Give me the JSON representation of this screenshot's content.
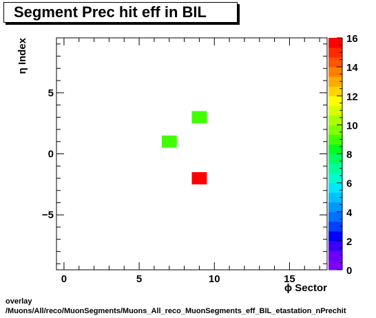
{
  "chart_data": {
    "type": "heatmap",
    "title": "Segment Prec hit eff in BIL",
    "xlabel": "ϕ Sector",
    "ylabel": "η Index",
    "xlim": [
      -0.5,
      17.5
    ],
    "ylim": [
      -9.5,
      9.5
    ],
    "x_ticks": [
      0,
      5,
      10,
      15
    ],
    "y_ticks": [
      -5,
      0,
      5
    ],
    "zlim": [
      0,
      16
    ],
    "z_ticks": [
      0,
      2,
      4,
      6,
      8,
      10,
      12,
      14,
      16
    ],
    "cells": [
      {
        "x": 7,
        "y": 1,
        "value": 9
      },
      {
        "x": 9,
        "y": 3,
        "value": 9
      },
      {
        "x": 9,
        "y": -2,
        "value": 16
      }
    ],
    "palette": [
      "#7f00ff",
      "#6a00ff",
      "#3a00ff",
      "#0000ff",
      "#0040ff",
      "#0070ff",
      "#0096ff",
      "#00bfff",
      "#00e5ff",
      "#00ffd0",
      "#00ff99",
      "#00ff60",
      "#00ff20",
      "#40ff00",
      "#80ff00",
      "#aaff00",
      "#d5ff00",
      "#ffff00",
      "#ffd500",
      "#ffaa00",
      "#ff8000",
      "#ff5500",
      "#ff2a00",
      "#ff0000"
    ]
  },
  "footer": {
    "line1": "overlay",
    "line2": "/Muons/All/reco/MuonSegments/Muons_All_reco_MuonSegments_eff_BIL_etastation_nPrechit"
  }
}
